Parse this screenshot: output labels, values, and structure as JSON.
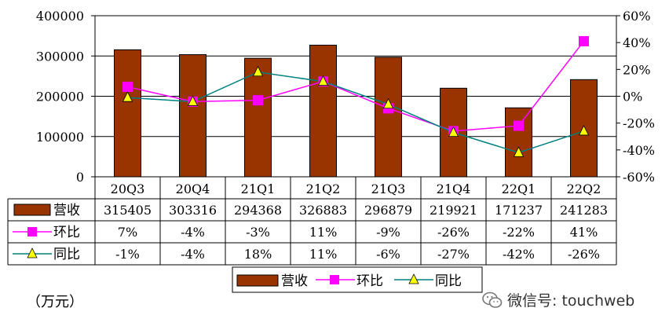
{
  "chart_data": {
    "type": "bar",
    "categories": [
      "20Q3",
      "20Q4",
      "21Q1",
      "21Q2",
      "21Q3",
      "21Q4",
      "22Q1",
      "22Q2"
    ],
    "series": [
      {
        "name": "营收",
        "type": "bar",
        "axis": "left",
        "color": "#993300",
        "values": [
          315405,
          303316,
          294368,
          326883,
          296879,
          219921,
          171237,
          241283
        ]
      },
      {
        "name": "环比",
        "type": "line",
        "axis": "right",
        "color": "#ff00ff",
        "marker": "square",
        "values": [
          7,
          -4,
          -3,
          11,
          -9,
          -26,
          -22,
          41
        ]
      },
      {
        "name": "同比",
        "type": "line",
        "axis": "right",
        "color": "#008080",
        "marker": "triangle",
        "marker_color": "#ffff00",
        "values": [
          -1,
          -4,
          18,
          11,
          -6,
          -27,
          -42,
          -26
        ]
      }
    ],
    "y_left": {
      "ylim": [
        0,
        400000
      ],
      "ticks": [
        "0",
        "100000",
        "200000",
        "300000",
        "400000"
      ]
    },
    "y_right": {
      "ylim": [
        -60,
        60
      ],
      "unit": "%",
      "ticks": [
        "-60%",
        "-40%",
        "-20%",
        "0%",
        "20%",
        "40%",
        "60%"
      ]
    },
    "table": {
      "rows": [
        {
          "label": "营收",
          "cells": [
            "315405",
            "303316",
            "294368",
            "326883",
            "296879",
            "219921",
            "171237",
            "241283"
          ]
        },
        {
          "label": "环比",
          "cells": [
            "7%",
            "-4%",
            "-3%",
            "11%",
            "-9%",
            "-26%",
            "-22%",
            "41%"
          ]
        },
        {
          "label": "同比",
          "cells": [
            "-1%",
            "-4%",
            "18%",
            "11%",
            "-6%",
            "-27%",
            "-42%",
            "-26%"
          ]
        }
      ]
    },
    "legend": [
      "营收",
      "环比",
      "同比"
    ],
    "legend_position": "bottom",
    "unit_note": "（万元）",
    "grid": true
  },
  "watermark": {
    "icon": "wechat-icon",
    "text": "微信号: touchweb"
  }
}
